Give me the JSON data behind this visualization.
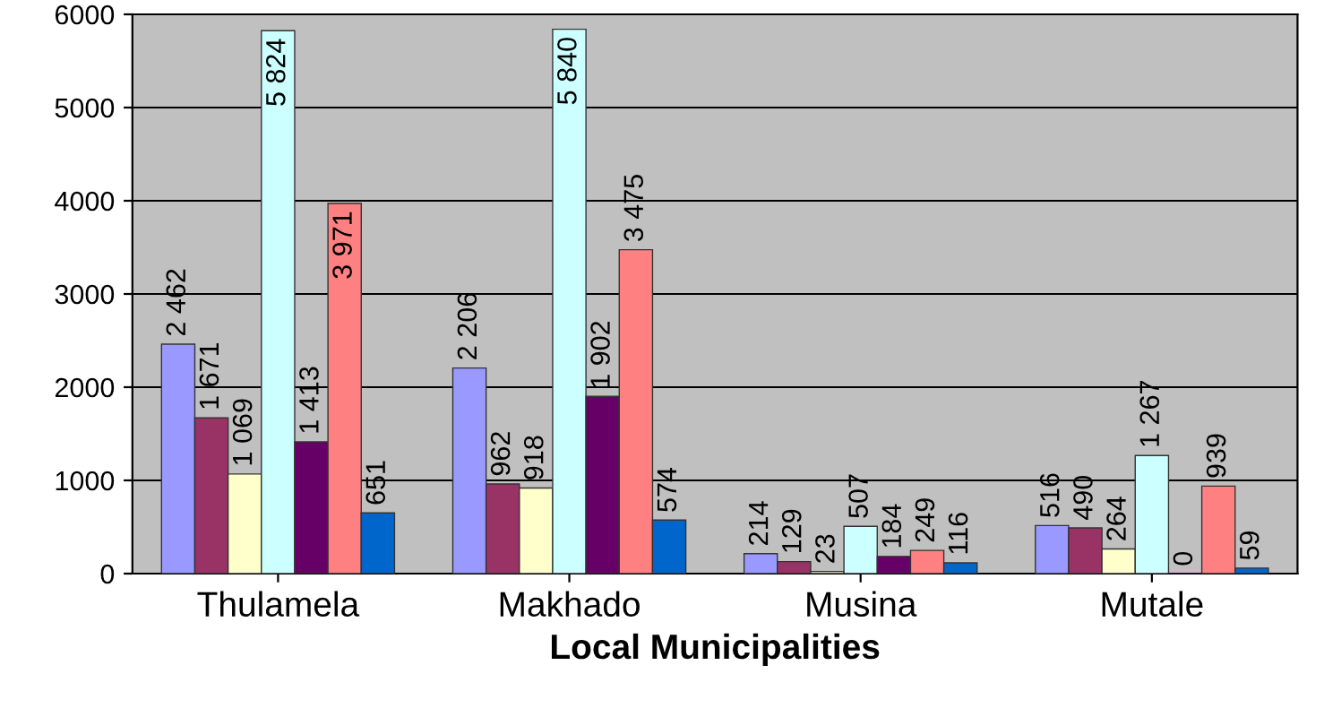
{
  "chart_data": {
    "type": "bar",
    "xlabel": "Local Municipalities",
    "categories": [
      "Thulamela",
      "Makhado",
      "Musina",
      "Mutale"
    ],
    "series": [
      {
        "color": "#9999ff",
        "values": [
          2462,
          2206,
          214,
          516
        ],
        "value_labels": [
          "2 462",
          "2 206",
          "214",
          "516"
        ]
      },
      {
        "color": "#993366",
        "values": [
          1671,
          962,
          129,
          490
        ],
        "value_labels": [
          "1 671",
          "962",
          "129",
          "490"
        ]
      },
      {
        "color": "#ffffcc",
        "values": [
          1069,
          918,
          23,
          264
        ],
        "value_labels": [
          "1 069",
          "918",
          "23",
          "264"
        ]
      },
      {
        "color": "#ccffff",
        "values": [
          5824,
          5840,
          507,
          1267
        ],
        "value_labels": [
          "5 824",
          "5 840",
          "507",
          "1 267"
        ]
      },
      {
        "color": "#660066",
        "values": [
          1413,
          1902,
          184,
          0
        ],
        "value_labels": [
          "1 413",
          "1 902",
          "184",
          "0"
        ]
      },
      {
        "color": "#ff8080",
        "values": [
          3971,
          3475,
          249,
          939
        ],
        "value_labels": [
          "3 971",
          "3 475",
          "249",
          "939"
        ]
      },
      {
        "color": "#0066cc",
        "values": [
          651,
          574,
          116,
          59
        ],
        "value_labels": [
          "651",
          "574",
          "116",
          "59"
        ]
      }
    ],
    "ylim": [
      0,
      6000
    ],
    "yticks": [
      0,
      1000,
      2000,
      3000,
      4000,
      5000,
      6000
    ],
    "grid": "y",
    "legend": false
  }
}
